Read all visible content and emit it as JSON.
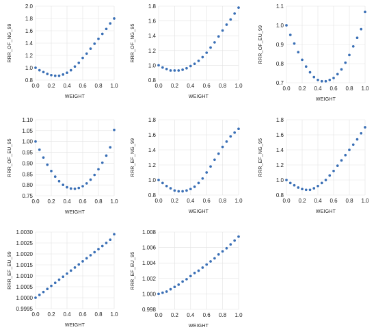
{
  "chart_data": [
    {
      "type": "scatter",
      "xlabel": "WEIGHT",
      "ylabel": "RRR_OF_NG_99",
      "xlim": [
        0.0,
        1.0
      ],
      "ylim": [
        0.8,
        2.0
      ],
      "xticks": [
        "0.0",
        "0.2",
        "0.4",
        "0.6",
        "0.8",
        "1.0"
      ],
      "yticks": [
        "0.8",
        "1.0",
        "1.2",
        "1.4",
        "1.6",
        "1.8",
        "2.0"
      ],
      "x": [
        0.0,
        0.05,
        0.1,
        0.15,
        0.2,
        0.25,
        0.3,
        0.35,
        0.4,
        0.45,
        0.5,
        0.55,
        0.6,
        0.65,
        0.7,
        0.75,
        0.8,
        0.85,
        0.9,
        0.95,
        1.0
      ],
      "y": [
        1.0,
        0.96,
        0.93,
        0.9,
        0.88,
        0.87,
        0.87,
        0.89,
        0.92,
        0.96,
        1.02,
        1.08,
        1.16,
        1.23,
        1.31,
        1.39,
        1.47,
        1.55,
        1.63,
        1.72,
        1.8
      ]
    },
    {
      "type": "scatter",
      "xlabel": "WEIGHT",
      "ylabel": "RRR_OF_NG_95",
      "xlim": [
        0.0,
        1.0
      ],
      "ylim": [
        0.8,
        1.8
      ],
      "xticks": [
        "0.0",
        "0.2",
        "0.4",
        "0.6",
        "0.8",
        "1.0"
      ],
      "yticks": [
        "0.8",
        "1.0",
        "1.2",
        "1.4",
        "1.6",
        "1.8"
      ],
      "x": [
        0.0,
        0.05,
        0.1,
        0.15,
        0.2,
        0.25,
        0.3,
        0.35,
        0.4,
        0.45,
        0.5,
        0.55,
        0.6,
        0.65,
        0.7,
        0.75,
        0.8,
        0.85,
        0.9,
        0.95,
        1.0
      ],
      "y": [
        1.0,
        0.97,
        0.95,
        0.93,
        0.93,
        0.93,
        0.94,
        0.96,
        0.99,
        1.02,
        1.06,
        1.11,
        1.17,
        1.24,
        1.31,
        1.39,
        1.47,
        1.55,
        1.62,
        1.7,
        1.78
      ]
    },
    {
      "type": "scatter",
      "xlabel": "WEIGHT",
      "ylabel": "RRR_OF_EU_99",
      "xlim": [
        0.0,
        1.0
      ],
      "ylim": [
        0.7,
        1.1
      ],
      "xticks": [
        "0.0",
        "0.2",
        "0.4",
        "0.6",
        "0.8",
        "1.0"
      ],
      "yticks": [
        "0.7",
        "0.8",
        "0.9",
        "1.0",
        "1.1"
      ],
      "x": [
        0.0,
        0.05,
        0.1,
        0.15,
        0.2,
        0.25,
        0.3,
        0.35,
        0.4,
        0.45,
        0.5,
        0.55,
        0.6,
        0.65,
        0.7,
        0.75,
        0.8,
        0.85,
        0.9,
        0.95,
        1.0
      ],
      "y": [
        1.0,
        0.95,
        0.905,
        0.86,
        0.82,
        0.785,
        0.755,
        0.73,
        0.715,
        0.708,
        0.708,
        0.715,
        0.725,
        0.745,
        0.77,
        0.805,
        0.845,
        0.89,
        0.935,
        0.98,
        1.07
      ]
    },
    {
      "type": "scatter",
      "xlabel": "WEIGHT",
      "ylabel": "RRR_OF_EU_95",
      "xlim": [
        0.0,
        1.0
      ],
      "ylim": [
        0.75,
        1.1
      ],
      "xticks": [
        "0.0",
        "0.2",
        "0.4",
        "0.6",
        "0.8",
        "1.0"
      ],
      "yticks": [
        "0.75",
        "0.80",
        "0.85",
        "0.90",
        "0.95",
        "1.00",
        "1.05",
        "1.10"
      ],
      "x": [
        0.0,
        0.05,
        0.1,
        0.15,
        0.2,
        0.25,
        0.3,
        0.35,
        0.4,
        0.45,
        0.5,
        0.55,
        0.6,
        0.65,
        0.7,
        0.75,
        0.8,
        0.85,
        0.9,
        0.95,
        1.0
      ],
      "y": [
        1.0,
        0.962,
        0.926,
        0.893,
        0.864,
        0.838,
        0.817,
        0.8,
        0.789,
        0.783,
        0.782,
        0.786,
        0.794,
        0.807,
        0.824,
        0.846,
        0.872,
        0.902,
        0.935,
        0.973,
        1.053
      ]
    },
    {
      "type": "scatter",
      "xlabel": "WEIGHT",
      "ylabel": "RRR_EF_NG_99",
      "xlim": [
        0.0,
        1.0
      ],
      "ylim": [
        0.8,
        1.8
      ],
      "xticks": [
        "0.0",
        "0.2",
        "0.4",
        "0.6",
        "0.8",
        "1.0"
      ],
      "yticks": [
        "0.8",
        "1.0",
        "1.2",
        "1.4",
        "1.6",
        "1.8"
      ],
      "x": [
        0.0,
        0.05,
        0.1,
        0.15,
        0.2,
        0.25,
        0.3,
        0.35,
        0.4,
        0.45,
        0.5,
        0.55,
        0.6,
        0.65,
        0.7,
        0.75,
        0.8,
        0.85,
        0.9,
        0.95,
        1.0
      ],
      "y": [
        1.0,
        0.96,
        0.92,
        0.89,
        0.86,
        0.85,
        0.85,
        0.86,
        0.88,
        0.91,
        0.96,
        1.02,
        1.1,
        1.18,
        1.27,
        1.35,
        1.44,
        1.51,
        1.58,
        1.63,
        1.68
      ]
    },
    {
      "type": "scatter",
      "xlabel": "WEIGHT",
      "ylabel": "RRR_EF_NG_95",
      "xlim": [
        0.0,
        1.0
      ],
      "ylim": [
        0.8,
        1.8
      ],
      "xticks": [
        "0.0",
        "0.2",
        "0.4",
        "0.6",
        "0.8",
        "1.0"
      ],
      "yticks": [
        "0.8",
        "1.0",
        "1.2",
        "1.4",
        "1.6",
        "1.8"
      ],
      "x": [
        0.0,
        0.05,
        0.1,
        0.15,
        0.2,
        0.25,
        0.3,
        0.35,
        0.4,
        0.45,
        0.5,
        0.55,
        0.6,
        0.65,
        0.7,
        0.75,
        0.8,
        0.85,
        0.9,
        0.95,
        1.0
      ],
      "y": [
        1.0,
        0.96,
        0.93,
        0.9,
        0.88,
        0.87,
        0.87,
        0.89,
        0.92,
        0.96,
        1.0,
        1.06,
        1.12,
        1.19,
        1.26,
        1.33,
        1.4,
        1.47,
        1.54,
        1.62,
        1.7
      ]
    },
    {
      "type": "scatter",
      "xlabel": "WEIGHT",
      "ylabel": "RRR_EF_EU_99",
      "xlim": [
        0.0,
        1.0
      ],
      "ylim": [
        0.9995,
        1.003
      ],
      "xticks": [
        "0.0",
        "0.2",
        "0.4",
        "0.6",
        "0.8",
        "1.0"
      ],
      "yticks": [
        "0.9995",
        "1.0000",
        "1.0005",
        "1.0010",
        "1.0015",
        "1.0020",
        "1.0025",
        "1.0030"
      ],
      "x": [
        0.0,
        0.05,
        0.1,
        0.15,
        0.2,
        0.25,
        0.3,
        0.35,
        0.4,
        0.45,
        0.5,
        0.55,
        0.6,
        0.65,
        0.7,
        0.75,
        0.8,
        0.85,
        0.9,
        0.95,
        1.0
      ],
      "y": [
        1.0,
        1.00013,
        1.00026,
        1.0004,
        1.00054,
        1.00068,
        1.00082,
        1.00096,
        1.0011,
        1.00124,
        1.00138,
        1.00152,
        1.00166,
        1.0018,
        1.00194,
        1.00208,
        1.00222,
        1.00236,
        1.0025,
        1.00265,
        1.0029
      ]
    },
    {
      "type": "scatter",
      "xlabel": "WEIGHT",
      "ylabel": "RRR_EF_EU_95",
      "xlim": [
        0.0,
        1.0
      ],
      "ylim": [
        0.998,
        1.008
      ],
      "xticks": [
        "0.0",
        "0.2",
        "0.4",
        "0.6",
        "0.8",
        "1.0"
      ],
      "yticks": [
        "0.998",
        "1.000",
        "1.002",
        "1.004",
        "1.006",
        "1.008"
      ],
      "x": [
        0.0,
        0.05,
        0.1,
        0.15,
        0.2,
        0.25,
        0.3,
        0.35,
        0.4,
        0.45,
        0.5,
        0.55,
        0.6,
        0.65,
        0.7,
        0.75,
        0.8,
        0.85,
        0.9,
        0.95,
        1.0
      ],
      "y": [
        1.0,
        1.00015,
        1.0003,
        1.0006,
        1.0009,
        1.0012,
        1.0016,
        1.0019,
        1.0023,
        1.0027,
        1.003,
        1.0034,
        1.0038,
        1.0042,
        1.0046,
        1.0051,
        1.0055,
        1.0059,
        1.0064,
        1.0069,
        1.0074
      ]
    }
  ]
}
